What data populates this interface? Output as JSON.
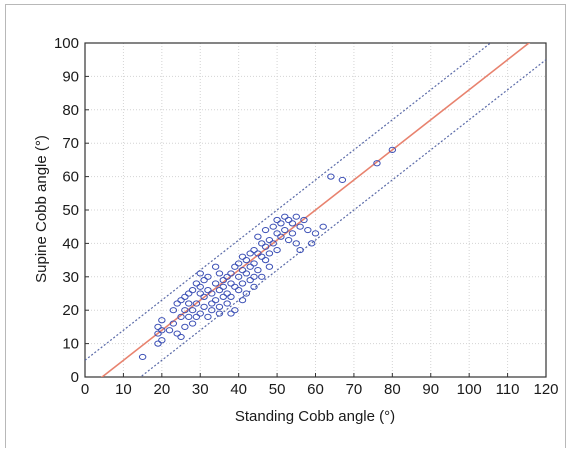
{
  "chart_data": {
    "type": "scatter",
    "xlabel": "Standing Cobb angle (°)",
    "ylabel": "Supine Cobb angle (°)",
    "xlim": [
      0,
      120
    ],
    "ylim": [
      0,
      100
    ],
    "xticks": [
      0,
      10,
      20,
      30,
      40,
      50,
      60,
      70,
      80,
      90,
      100,
      110,
      120
    ],
    "yticks": [
      0,
      10,
      20,
      30,
      40,
      50,
      60,
      70,
      80,
      90,
      100
    ],
    "grid": true,
    "regression_line": {
      "slope": 0.9,
      "intercept": -4.0,
      "color": "#e8826e"
    },
    "confidence_bands": [
      {
        "slope": 0.9,
        "intercept": 5.0,
        "color": "#5a6aa8"
      },
      {
        "slope": 0.9,
        "intercept": -13.0,
        "color": "#5a6aa8"
      }
    ],
    "marker_color": "#3b4fb5",
    "points": [
      [
        15,
        6
      ],
      [
        19,
        10
      ],
      [
        19,
        13
      ],
      [
        19,
        15
      ],
      [
        20,
        14
      ],
      [
        20,
        17
      ],
      [
        20,
        11
      ],
      [
        22,
        14
      ],
      [
        23,
        16
      ],
      [
        23,
        20
      ],
      [
        24,
        13
      ],
      [
        24,
        22
      ],
      [
        25,
        12
      ],
      [
        25,
        18
      ],
      [
        25,
        23
      ],
      [
        26,
        24
      ],
      [
        26,
        20
      ],
      [
        26,
        15
      ],
      [
        27,
        25
      ],
      [
        27,
        22
      ],
      [
        27,
        18
      ],
      [
        28,
        26
      ],
      [
        28,
        20
      ],
      [
        28,
        16
      ],
      [
        29,
        28
      ],
      [
        29,
        22
      ],
      [
        29,
        18
      ],
      [
        30,
        25
      ],
      [
        30,
        19
      ],
      [
        30,
        27
      ],
      [
        31,
        29
      ],
      [
        31,
        21
      ],
      [
        31,
        24
      ],
      [
        32,
        26
      ],
      [
        32,
        18
      ],
      [
        32,
        30
      ],
      [
        33,
        22
      ],
      [
        33,
        25
      ],
      [
        33,
        20
      ],
      [
        34,
        33
      ],
      [
        34,
        28
      ],
      [
        34,
        23
      ],
      [
        35,
        19
      ],
      [
        35,
        21
      ],
      [
        35,
        26
      ],
      [
        36,
        29
      ],
      [
        36,
        24
      ],
      [
        36,
        27
      ],
      [
        37,
        30
      ],
      [
        37,
        22
      ],
      [
        37,
        25
      ],
      [
        38,
        28
      ],
      [
        38,
        31
      ],
      [
        38,
        24
      ],
      [
        39,
        33
      ],
      [
        39,
        27
      ],
      [
        39,
        20
      ],
      [
        40,
        34
      ],
      [
        40,
        30
      ],
      [
        40,
        26
      ],
      [
        41,
        36
      ],
      [
        41,
        32
      ],
      [
        41,
        28
      ],
      [
        42,
        35
      ],
      [
        42,
        31
      ],
      [
        42,
        25
      ],
      [
        43,
        37
      ],
      [
        43,
        33
      ],
      [
        43,
        29
      ],
      [
        44,
        38
      ],
      [
        44,
        34
      ],
      [
        44,
        27
      ],
      [
        45,
        42
      ],
      [
        45,
        37
      ],
      [
        45,
        32
      ],
      [
        46,
        40
      ],
      [
        46,
        36
      ],
      [
        46,
        30
      ],
      [
        47,
        39
      ],
      [
        47,
        35
      ],
      [
        47,
        44
      ],
      [
        48,
        41
      ],
      [
        48,
        37
      ],
      [
        48,
        33
      ],
      [
        49,
        45
      ],
      [
        49,
        40
      ],
      [
        50,
        47
      ],
      [
        50,
        43
      ],
      [
        50,
        38
      ],
      [
        51,
        46
      ],
      [
        51,
        42
      ],
      [
        52,
        48
      ],
      [
        52,
        44
      ],
      [
        53,
        47
      ],
      [
        53,
        41
      ],
      [
        54,
        46
      ],
      [
        54,
        43
      ],
      [
        55,
        48
      ],
      [
        55,
        40
      ],
      [
        56,
        45
      ],
      [
        56,
        38
      ],
      [
        57,
        47
      ],
      [
        58,
        44
      ],
      [
        59,
        40
      ],
      [
        60,
        43
      ],
      [
        62,
        45
      ],
      [
        64,
        60
      ],
      [
        67,
        59
      ],
      [
        76,
        64
      ],
      [
        80,
        68
      ],
      [
        35,
        31
      ],
      [
        44,
        30
      ],
      [
        41,
        23
      ],
      [
        38,
        19
      ],
      [
        30,
        31
      ]
    ]
  }
}
